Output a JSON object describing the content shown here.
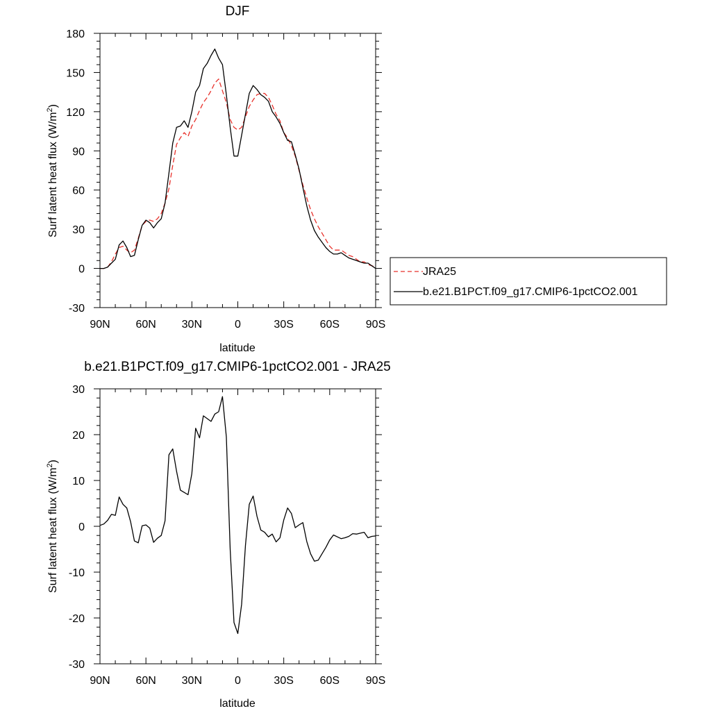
{
  "chart_data": [
    {
      "type": "line",
      "title": "DJF",
      "xlabel": "latitude",
      "ylabel": "Surf latent heat flux (W/m",
      "ylabel_sup": "2",
      "ylabel_close": ")",
      "xlim": [
        90,
        -90
      ],
      "ylim": [
        -30,
        180
      ],
      "x_ticks": [
        90,
        60,
        30,
        0,
        -30,
        -60,
        -90
      ],
      "x_tick_labels": [
        "90N",
        "60N",
        "30N",
        "0",
        "30S",
        "60S",
        "90S"
      ],
      "y_ticks": [
        -30,
        0,
        30,
        60,
        90,
        120,
        150,
        180
      ],
      "y_tick_labels": [
        "-30",
        "0",
        "30",
        "60",
        "90",
        "120",
        "150",
        "180"
      ],
      "legend": {
        "placement": "right",
        "entries": [
          "JRA25",
          "b.e21.B1PCT.f09_g17.CMIP6-1pctCO2.001"
        ]
      },
      "grid": false,
      "series": [
        {
          "name": "JRA25",
          "color": "#e8302a",
          "style": "dashed",
          "points": [
            [
              90,
              0
            ],
            [
              87.5,
              0
            ],
            [
              85,
              1
            ],
            [
              82.5,
              5
            ],
            [
              80,
              11
            ],
            [
              77.5,
              16
            ],
            [
              75,
              17
            ],
            [
              72.5,
              14
            ],
            [
              70,
              12
            ],
            [
              67.5,
              14
            ],
            [
              65,
              23
            ],
            [
              62.5,
              33
            ],
            [
              60,
              36
            ],
            [
              57.5,
              37
            ],
            [
              55,
              36
            ],
            [
              52.5,
              38
            ],
            [
              50,
              42
            ],
            [
              47.5,
              50
            ],
            [
              45,
              61
            ],
            [
              42.5,
              79
            ],
            [
              40,
              95
            ],
            [
              37.5,
              100
            ],
            [
              35,
              104
            ],
            [
              32.5,
              101
            ],
            [
              30,
              109
            ],
            [
              27.5,
              114
            ],
            [
              25,
              121
            ],
            [
              22.5,
              127
            ],
            [
              20,
              131
            ],
            [
              17.5,
              136
            ],
            [
              15,
              142
            ],
            [
              12.5,
              145
            ],
            [
              10,
              136
            ],
            [
              7.5,
              127
            ],
            [
              5,
              114
            ],
            [
              2.5,
              108
            ],
            [
              0,
              106
            ],
            [
              -2.5,
              108
            ],
            [
              -5,
              116
            ],
            [
              -7.5,
              124
            ],
            [
              -10,
              129
            ],
            [
              -12.5,
              133
            ],
            [
              -15,
              134
            ],
            [
              -17.5,
              134
            ],
            [
              -20,
              131
            ],
            [
              -22.5,
              125
            ],
            [
              -25,
              118
            ],
            [
              -27.5,
              113
            ],
            [
              -30,
              104
            ],
            [
              -32.5,
              100
            ],
            [
              -35,
              94
            ],
            [
              -37.5,
              86
            ],
            [
              -40,
              75
            ],
            [
              -42.5,
              64
            ],
            [
              -45,
              54
            ],
            [
              -47.5,
              45
            ],
            [
              -50,
              38
            ],
            [
              -52.5,
              32
            ],
            [
              -55,
              27
            ],
            [
              -57.5,
              22
            ],
            [
              -60,
              17
            ],
            [
              -62.5,
              14
            ],
            [
              -65,
              14
            ],
            [
              -67.5,
              14
            ],
            [
              -70,
              12
            ],
            [
              -72.5,
              10
            ],
            [
              -75,
              9
            ],
            [
              -77.5,
              7
            ],
            [
              -80,
              5
            ],
            [
              -82.5,
              5
            ],
            [
              -85,
              3
            ],
            [
              -87.5,
              2
            ],
            [
              -90,
              1
            ]
          ]
        },
        {
          "name": "b.e21.B1PCT.f09_g17.CMIP6-1pctCO2.001",
          "color": "#000000",
          "style": "solid",
          "points": [
            [
              90,
              0
            ],
            [
              87.5,
              0
            ],
            [
              85,
              1
            ],
            [
              82.5,
              4
            ],
            [
              80,
              7
            ],
            [
              77.5,
              18
            ],
            [
              75,
              21
            ],
            [
              72.5,
              16
            ],
            [
              70,
              9
            ],
            [
              67.5,
              10
            ],
            [
              65,
              22
            ],
            [
              62.5,
              33
            ],
            [
              60,
              37
            ],
            [
              57.5,
              35
            ],
            [
              55,
              31
            ],
            [
              52.5,
              35
            ],
            [
              50,
              38
            ],
            [
              47.5,
              50
            ],
            [
              45,
              73
            ],
            [
              42.5,
              96
            ],
            [
              40,
              108
            ],
            [
              37.5,
              109
            ],
            [
              35,
              113
            ],
            [
              32.5,
              108
            ],
            [
              30,
              120
            ],
            [
              27.5,
              135
            ],
            [
              25,
              140
            ],
            [
              22.5,
              153
            ],
            [
              20,
              157
            ],
            [
              17.5,
              163
            ],
            [
              15,
              168
            ],
            [
              12.5,
              161
            ],
            [
              10,
              156
            ],
            [
              7.5,
              133
            ],
            [
              5,
              108
            ],
            [
              2.5,
              86
            ],
            [
              0,
              86
            ],
            [
              -2.5,
              102
            ],
            [
              -5,
              118
            ],
            [
              -7.5,
              134
            ],
            [
              -10,
              140
            ],
            [
              -12.5,
              137
            ],
            [
              -15,
              133
            ],
            [
              -17.5,
              131
            ],
            [
              -20,
              128
            ],
            [
              -22.5,
              120
            ],
            [
              -25,
              116
            ],
            [
              -27.5,
              111
            ],
            [
              -30,
              104
            ],
            [
              -32.5,
              98
            ],
            [
              -35,
              97
            ],
            [
              -37.5,
              87
            ],
            [
              -40,
              76
            ],
            [
              -42.5,
              62
            ],
            [
              -45,
              48
            ],
            [
              -47.5,
              37
            ],
            [
              -50,
              29
            ],
            [
              -52.5,
              24
            ],
            [
              -55,
              20
            ],
            [
              -57.5,
              16
            ],
            [
              -60,
              13
            ],
            [
              -62.5,
              11
            ],
            [
              -65,
              11
            ],
            [
              -67.5,
              12
            ],
            [
              -70,
              10
            ],
            [
              -72.5,
              8
            ],
            [
              -75,
              7
            ],
            [
              -77.5,
              6
            ],
            [
              -80,
              5
            ],
            [
              -82.5,
              4
            ],
            [
              -85,
              4
            ],
            [
              -87.5,
              2
            ],
            [
              -90,
              0
            ]
          ]
        }
      ]
    },
    {
      "type": "line",
      "title": "b.e21.B1PCT.f09_g17.CMIP6-1pctCO2.001 - JRA25",
      "xlabel": "latitude",
      "ylabel": "Surf latent heat flux (W/m",
      "ylabel_sup": "2",
      "ylabel_close": ")",
      "xlim": [
        90,
        -90
      ],
      "ylim": [
        -30,
        30
      ],
      "x_ticks": [
        90,
        60,
        30,
        0,
        -30,
        -60,
        -90
      ],
      "x_tick_labels": [
        "90N",
        "60N",
        "30N",
        "0",
        "30S",
        "60S",
        "90S"
      ],
      "y_ticks": [
        -30,
        -20,
        -10,
        0,
        10,
        20,
        30
      ],
      "y_tick_labels": [
        "-30",
        "-20",
        "-10",
        "0",
        "10",
        "20",
        "30"
      ],
      "grid": false,
      "series": [
        {
          "color": "#000000",
          "style": "solid",
          "points": [
            [
              90,
              0.2
            ],
            [
              87.5,
              0.5
            ],
            [
              85,
              1.3
            ],
            [
              82.5,
              2.6
            ],
            [
              80,
              2.4
            ],
            [
              77.5,
              6.4
            ],
            [
              75,
              4.8
            ],
            [
              72.5,
              4.0
            ],
            [
              70,
              1.0
            ],
            [
              67.5,
              -3.2
            ],
            [
              65,
              -3.6
            ],
            [
              62.5,
              0.1
            ],
            [
              60,
              0.3
            ],
            [
              57.5,
              -0.4
            ],
            [
              55,
              -3.5
            ],
            [
              52.5,
              -2.6
            ],
            [
              50,
              -2.0
            ],
            [
              47.5,
              1.2
            ],
            [
              45,
              15.6
            ],
            [
              42.5,
              16.9
            ],
            [
              40,
              12.0
            ],
            [
              37.5,
              7.9
            ],
            [
              35,
              7.4
            ],
            [
              32.5,
              6.9
            ],
            [
              30,
              11.5
            ],
            [
              27.5,
              21.4
            ],
            [
              25,
              19.3
            ],
            [
              22.5,
              24.1
            ],
            [
              20,
              23.5
            ],
            [
              17.5,
              22.9
            ],
            [
              15,
              24.5
            ],
            [
              12.5,
              25.0
            ],
            [
              10,
              28.3
            ],
            [
              7.5,
              19.5
            ],
            [
              5,
              -5.0
            ],
            [
              2.5,
              -21.0
            ],
            [
              0,
              -23.4
            ],
            [
              -2.5,
              -17.0
            ],
            [
              -5,
              -4.2
            ],
            [
              -7.5,
              4.8
            ],
            [
              -10,
              6.6
            ],
            [
              -12.5,
              2.2
            ],
            [
              -15,
              -0.8
            ],
            [
              -17.5,
              -1.3
            ],
            [
              -20,
              -2.3
            ],
            [
              -22.5,
              -1.7
            ],
            [
              -25,
              -3.4
            ],
            [
              -27.5,
              -2.5
            ],
            [
              -30,
              1.4
            ],
            [
              -32.5,
              4.0
            ],
            [
              -35,
              2.8
            ],
            [
              -37.5,
              -0.3
            ],
            [
              -40,
              0.3
            ],
            [
              -42.5,
              0.8
            ],
            [
              -45,
              -3.3
            ],
            [
              -47.5,
              -6.0
            ],
            [
              -50,
              -7.6
            ],
            [
              -52.5,
              -7.4
            ],
            [
              -55,
              -6.0
            ],
            [
              -57.5,
              -4.6
            ],
            [
              -60,
              -3.0
            ],
            [
              -62.5,
              -1.9
            ],
            [
              -65,
              -2.3
            ],
            [
              -67.5,
              -2.7
            ],
            [
              -70,
              -2.5
            ],
            [
              -72.5,
              -2.2
            ],
            [
              -75,
              -1.6
            ],
            [
              -77.5,
              -1.7
            ],
            [
              -80,
              -1.5
            ],
            [
              -82.5,
              -1.3
            ],
            [
              -85,
              -2.5
            ],
            [
              -87.5,
              -2.2
            ],
            [
              -90,
              -2.1
            ]
          ]
        }
      ]
    }
  ]
}
